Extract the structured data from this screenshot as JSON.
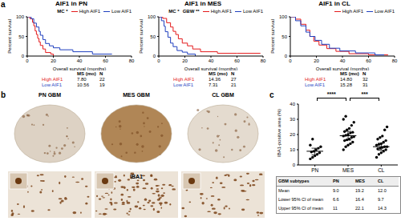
{
  "panel_labels": [
    "a",
    "b",
    "c"
  ],
  "chart_data": [
    {
      "type": "line",
      "title": "AIF1 in PN",
      "x_label": "Overall survival (months)",
      "y_label": "Percent survival",
      "xlim": [
        0,
        80
      ],
      "xticks": [
        0,
        20,
        40,
        60,
        80
      ],
      "ylim": [
        0,
        100
      ],
      "yticks": [
        0,
        50,
        100
      ],
      "legend": "top-right",
      "annotations": [
        "MC *"
      ],
      "series": [
        {
          "name": "High AIF1",
          "color": "#e41a1c",
          "line_style": "step",
          "x": [
            0,
            2,
            4,
            5,
            6,
            7,
            8,
            9,
            10,
            12,
            14,
            18,
            20
          ],
          "values": [
            100,
            95,
            86,
            77,
            64,
            55,
            45,
            36,
            27,
            18,
            9,
            5,
            0
          ]
        },
        {
          "name": "Low AIF1",
          "color": "#1f3fbf",
          "line_style": "step",
          "x": [
            0,
            3,
            5,
            7,
            9,
            10,
            12,
            14,
            17,
            20,
            25,
            35,
            50,
            65
          ],
          "values": [
            100,
            95,
            84,
            74,
            63,
            53,
            42,
            32,
            26,
            21,
            16,
            11,
            5,
            5
          ]
        }
      ],
      "table": {
        "header": [
          "MS (mo)",
          "N"
        ],
        "rows": [
          [
            "High AIF1",
            "7.80",
            "22"
          ],
          [
            "Low AIF1",
            "10.56",
            "19"
          ]
        ]
      }
    },
    {
      "type": "line",
      "title": "AIF1 in MES",
      "x_label": "Overall survival (months)",
      "y_label": "Percent survival",
      "xlim": [
        0,
        80
      ],
      "xticks": [
        0,
        20,
        40,
        60,
        80
      ],
      "ylim": [
        0,
        100
      ],
      "yticks": [
        0,
        50,
        100
      ],
      "legend": "top-right",
      "annotations": [
        "MC *",
        "GBW **"
      ],
      "series": [
        {
          "name": "High AIF1",
          "color": "#e41a1c",
          "line_style": "step",
          "x": [
            0,
            3,
            6,
            9,
            11,
            13,
            15,
            18,
            22,
            26,
            32,
            45,
            60,
            78
          ],
          "values": [
            100,
            96,
            85,
            74,
            63,
            55,
            44,
            33,
            26,
            18,
            11,
            7,
            7,
            7
          ]
        },
        {
          "name": "Low AIF1",
          "color": "#1f3fbf",
          "line_style": "step",
          "x": [
            0,
            2,
            4,
            5,
            7,
            9,
            11,
            14,
            18,
            22,
            28
          ],
          "values": [
            100,
            90,
            76,
            62,
            48,
            33,
            24,
            14,
            10,
            5,
            0
          ]
        }
      ],
      "table": {
        "header": [
          "MS (mo)",
          "N"
        ],
        "rows": [
          [
            "High AIF1",
            "14.36",
            "27"
          ],
          [
            "Low AIF1",
            "7.31",
            "21"
          ]
        ]
      }
    },
    {
      "type": "line",
      "title": "AIF1 in CL",
      "x_label": "Overall survival (months)",
      "y_label": "Percent survival",
      "xlim": [
        0,
        80
      ],
      "xticks": [
        0,
        20,
        40,
        60,
        80
      ],
      "ylim": [
        0,
        100
      ],
      "yticks": [
        0,
        50,
        100
      ],
      "legend": "top-right",
      "annotations": [],
      "series": [
        {
          "name": "High AIF1",
          "color": "#e41a1c",
          "line_style": "step",
          "x": [
            0,
            4,
            8,
            12,
            15,
            18,
            22,
            28,
            35,
            45,
            60,
            75
          ],
          "values": [
            100,
            94,
            81,
            66,
            50,
            38,
            28,
            19,
            12,
            6,
            3,
            3
          ]
        },
        {
          "name": "Low AIF1",
          "color": "#1f3fbf",
          "line_style": "step",
          "x": [
            0,
            4,
            8,
            12,
            15,
            19,
            24,
            30,
            38,
            50,
            65,
            72
          ],
          "values": [
            100,
            90,
            77,
            61,
            50,
            40,
            30,
            20,
            13,
            8,
            3,
            3
          ]
        }
      ],
      "table": {
        "header": [
          "MS (mo)",
          "N"
        ],
        "rows": [
          [
            "High AIF1",
            "14.80",
            "32"
          ],
          [
            "Low AIF1",
            "15.28",
            "31"
          ]
        ]
      }
    },
    {
      "type": "scatter",
      "y_label": "IBA1-positive area (%)",
      "categories": [
        "PN",
        "MES",
        "CL"
      ],
      "values": [
        [
          4,
          5,
          6,
          7,
          8,
          8.5,
          9,
          10,
          11,
          12,
          13,
          17
        ],
        [
          10,
          12,
          13,
          14,
          15,
          16,
          16.5,
          17,
          18,
          18.5,
          19,
          19.5,
          20,
          21,
          21.5,
          22,
          23,
          24,
          26,
          28,
          30,
          32
        ],
        [
          5,
          7,
          8,
          9,
          10,
          10.5,
          11,
          11.5,
          12,
          12,
          13,
          13.5,
          14,
          15,
          16,
          17,
          18,
          19,
          23,
          25
        ]
      ],
      "color": "#000000",
      "marker": "circle",
      "ylim": [
        0,
        40
      ],
      "yticks": [
        0,
        10,
        20,
        30,
        40
      ],
      "mean": [
        9.0,
        19.2,
        12.0
      ],
      "ci_lower": [
        6.6,
        16.4,
        9.7
      ],
      "ci_upper": [
        11,
        22.1,
        14.3
      ],
      "annotations": [
        {
          "from": "PN",
          "to": "MES",
          "label": "****"
        },
        {
          "from": "MES",
          "to": "CL",
          "label": "***"
        }
      ],
      "table": {
        "header": [
          "GBM subtypes",
          "PN",
          "MES",
          "CL"
        ],
        "rows": [
          [
            "Mean",
            "9.0",
            "19.2",
            "12.0"
          ],
          [
            "Lower 95% CI of mean",
            "6.6",
            "16.4",
            "9.7"
          ],
          [
            "Upper 95% CI of mean",
            "11",
            "22.1",
            "14.3"
          ]
        ]
      }
    }
  ],
  "images": {
    "labels": [
      "PN GBM",
      "MES GBM",
      "CL GBM"
    ],
    "stain": "IBA1"
  }
}
